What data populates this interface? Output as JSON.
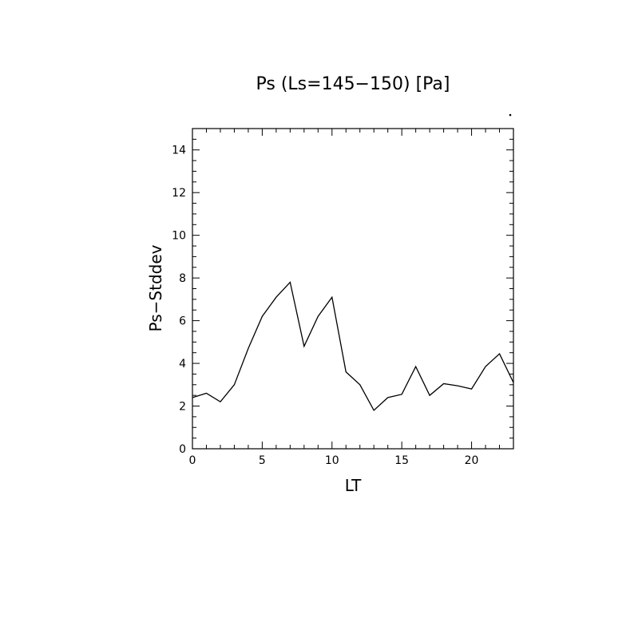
{
  "chart_data": {
    "type": "line",
    "title": "Ps (Ls=145−150) [Pa]",
    "xlabel": "LT",
    "ylabel": "Ps−Stddev",
    "xlim": [
      0,
      23
    ],
    "ylim": [
      0,
      15
    ],
    "x_ticks": [
      0,
      5,
      10,
      15,
      20
    ],
    "y_ticks": [
      0,
      2,
      4,
      6,
      8,
      10,
      12,
      14
    ],
    "grid": false,
    "legend": "none",
    "line_color": "#000000",
    "series": [
      {
        "x": [
          0,
          1,
          2,
          3,
          4,
          5,
          6,
          7,
          8,
          9,
          10,
          11,
          12,
          13,
          14,
          15,
          16,
          17,
          18,
          19,
          20,
          21,
          22,
          23
        ],
        "values": [
          2.4,
          2.6,
          2.2,
          3.0,
          4.7,
          6.2,
          7.1,
          7.8,
          4.8,
          6.2,
          7.1,
          3.6,
          3.0,
          1.8,
          2.4,
          2.55,
          3.85,
          2.5,
          3.05,
          2.95,
          2.8,
          3.85,
          4.45,
          3.1
        ]
      }
    ]
  }
}
